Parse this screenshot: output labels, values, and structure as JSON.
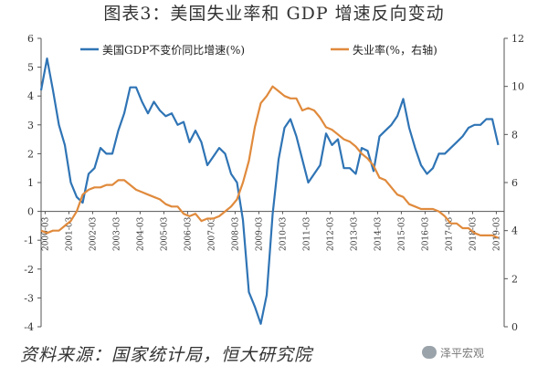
{
  "page": {
    "title": "图表3：美国失业率和 GDP 增速反向变动",
    "source": "资料来源：国家统计局，恒大研究院",
    "watermark": "泽平宏观",
    "watermark_icon": "wechat-icon"
  },
  "chart_data": {
    "type": "line",
    "title": "图表3：美国失业率和 GDP 增速反向变动",
    "x_tick_labels": [
      "2000-03",
      "2001-03",
      "2002-03",
      "2003-03",
      "2004-03",
      "2005-03",
      "2006-03",
      "2007-03",
      "2008-03",
      "2009-03",
      "2010-03",
      "2011-03",
      "2012-03",
      "2013-03",
      "2014-03",
      "2015-03",
      "2016-03",
      "2017-03",
      "2018-03",
      "2019-03"
    ],
    "x_range": [
      2000.0,
      2019.5
    ],
    "y_left": {
      "range": [
        -4,
        6
      ],
      "ticks": [
        -4,
        -3,
        -2,
        -1,
        0,
        1,
        2,
        3,
        4,
        5,
        6
      ]
    },
    "y_right": {
      "range": [
        0,
        12
      ],
      "ticks": [
        0,
        2,
        4,
        6,
        8,
        10,
        12
      ]
    },
    "grid": false,
    "legend_position": "top",
    "series": [
      {
        "name": "美国GDP不变价同比增速(%)",
        "axis": "left",
        "color": "#2f74b5",
        "x": [
          2000.0,
          2000.25,
          2000.5,
          2000.75,
          2001.0,
          2001.25,
          2001.5,
          2001.75,
          2002.0,
          2002.25,
          2002.5,
          2002.75,
          2003.0,
          2003.25,
          2003.5,
          2003.75,
          2004.0,
          2004.25,
          2004.5,
          2004.75,
          2005.0,
          2005.25,
          2005.5,
          2005.75,
          2006.0,
          2006.25,
          2006.5,
          2006.75,
          2007.0,
          2007.25,
          2007.5,
          2007.75,
          2008.0,
          2008.25,
          2008.5,
          2008.75,
          2009.0,
          2009.25,
          2009.5,
          2009.75,
          2010.0,
          2010.25,
          2010.5,
          2010.75,
          2011.0,
          2011.25,
          2011.5,
          2011.75,
          2012.0,
          2012.25,
          2012.5,
          2012.75,
          2013.0,
          2013.25,
          2013.5,
          2013.75,
          2014.0,
          2014.25,
          2014.5,
          2014.75,
          2015.0,
          2015.25,
          2015.5,
          2015.75,
          2016.0,
          2016.25,
          2016.5,
          2016.75,
          2017.0,
          2017.25,
          2017.5,
          2017.75,
          2018.0,
          2018.25,
          2018.5,
          2018.75,
          2019.0,
          2019.25
        ],
        "values": [
          4.2,
          5.3,
          4.2,
          3.0,
          2.3,
          1.0,
          0.5,
          0.3,
          1.3,
          1.5,
          2.2,
          2.0,
          2.0,
          2.8,
          3.4,
          4.3,
          4.3,
          3.8,
          3.4,
          3.8,
          3.5,
          3.3,
          3.4,
          3.0,
          3.1,
          2.4,
          2.8,
          2.4,
          1.6,
          1.9,
          2.2,
          2.0,
          1.3,
          1.0,
          -0.3,
          -2.8,
          -3.3,
          -3.9,
          -2.9,
          -0.1,
          1.8,
          2.9,
          3.2,
          2.6,
          1.8,
          1.0,
          1.3,
          1.6,
          2.7,
          2.3,
          2.5,
          1.5,
          1.5,
          1.3,
          2.2,
          2.1,
          1.4,
          2.6,
          2.8,
          3.0,
          3.3,
          3.9,
          2.9,
          2.2,
          1.6,
          1.3,
          1.5,
          2.0,
          2.0,
          2.2,
          2.4,
          2.6,
          2.9,
          3.0,
          3.0,
          3.2,
          3.2,
          2.3
        ]
      },
      {
        "name": "失业率(%，右轴)",
        "axis": "right",
        "color": "#e08a3c",
        "x": [
          2000.0,
          2000.25,
          2000.5,
          2000.75,
          2001.0,
          2001.25,
          2001.5,
          2001.75,
          2002.0,
          2002.25,
          2002.5,
          2002.75,
          2003.0,
          2003.25,
          2003.5,
          2003.75,
          2004.0,
          2004.25,
          2004.5,
          2004.75,
          2005.0,
          2005.25,
          2005.5,
          2005.75,
          2006.0,
          2006.25,
          2006.5,
          2006.75,
          2007.0,
          2007.25,
          2007.5,
          2007.75,
          2008.0,
          2008.25,
          2008.5,
          2008.75,
          2009.0,
          2009.25,
          2009.5,
          2009.75,
          2010.0,
          2010.25,
          2010.5,
          2010.75,
          2011.0,
          2011.25,
          2011.5,
          2011.75,
          2012.0,
          2012.25,
          2012.5,
          2012.75,
          2013.0,
          2013.25,
          2013.5,
          2013.75,
          2014.0,
          2014.25,
          2014.5,
          2014.75,
          2015.0,
          2015.25,
          2015.5,
          2015.75,
          2016.0,
          2016.25,
          2016.5,
          2016.75,
          2017.0,
          2017.25,
          2017.5,
          2017.75,
          2018.0,
          2018.25,
          2018.5,
          2018.75,
          2019.0,
          2019.25
        ],
        "values": [
          4.0,
          3.9,
          4.0,
          4.0,
          4.2,
          4.4,
          4.8,
          5.5,
          5.7,
          5.8,
          5.8,
          5.9,
          5.9,
          6.1,
          6.1,
          5.9,
          5.7,
          5.6,
          5.5,
          5.4,
          5.3,
          5.1,
          5.0,
          5.0,
          4.7,
          4.6,
          4.7,
          4.4,
          4.5,
          4.5,
          4.6,
          4.8,
          5.0,
          5.3,
          6.0,
          6.9,
          8.3,
          9.3,
          9.6,
          10.0,
          9.8,
          9.6,
          9.5,
          9.5,
          9.0,
          9.1,
          9.0,
          8.7,
          8.3,
          8.2,
          8.0,
          7.8,
          7.7,
          7.5,
          7.2,
          7.0,
          6.7,
          6.2,
          6.1,
          5.8,
          5.5,
          5.4,
          5.1,
          5.0,
          4.9,
          4.9,
          4.9,
          4.8,
          4.6,
          4.3,
          4.3,
          4.1,
          4.1,
          3.9,
          3.8,
          3.8,
          3.8,
          3.7
        ]
      }
    ]
  }
}
